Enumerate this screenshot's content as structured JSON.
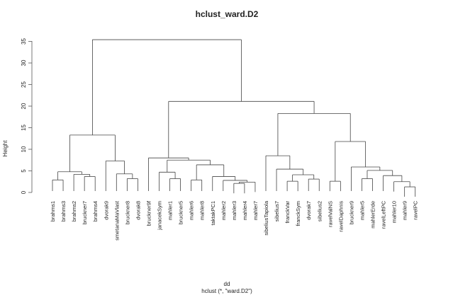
{
  "chart_data": {
    "type": "dendrogram",
    "title": "hclust_ward.D2",
    "xlabel": "dd",
    "subtitle": "hclust (*, \"ward.D2\")",
    "ylabel": "Height",
    "ylim": [
      0,
      35
    ],
    "yticks": [
      0,
      5,
      10,
      15,
      20,
      25,
      30,
      35
    ],
    "leaves": [
      "brahms1",
      "brahms3",
      "brahms2",
      "bruckner7",
      "brahms4",
      "dvorak9",
      "smetanaMaVlast",
      "bruckner8",
      "dvorak8",
      "bruckner9f",
      "janacekSym",
      "mahler1",
      "bruckner5",
      "mahler6",
      "mahler8",
      "taktakPC1",
      "mahler2",
      "mahler3",
      "mahler4",
      "mahler7",
      "sibeliusTapiola",
      "sibelius7",
      "franckVar",
      "franckSym",
      "dvorak7",
      "sibelius2",
      "ravelValNS",
      "ravelDaphnis",
      "bruckner9",
      "mahler5",
      "mahlerErde",
      "ravelLeftPC",
      "mahler10",
      "mahler9",
      "ravelPC"
    ],
    "merges": [
      {
        "a": "L:brahms1",
        "b": "L:brahms3",
        "h": 2.9,
        "id": "m1"
      },
      {
        "a": "L:bruckner7",
        "b": "L:brahms4",
        "h": 3.7,
        "id": "m2"
      },
      {
        "a": "L:brahms2",
        "b": "N:m2",
        "h": 4.2,
        "id": "m3"
      },
      {
        "a": "N:m1",
        "b": "N:m3",
        "h": 4.8,
        "id": "m4"
      },
      {
        "a": "L:bruckner8",
        "b": "L:dvorak8",
        "h": 3.2,
        "id": "m5"
      },
      {
        "a": "L:smetanaMaVlast",
        "b": "N:m5",
        "h": 4.3,
        "id": "m6"
      },
      {
        "a": "L:dvorak9",
        "b": "N:m6",
        "h": 7.3,
        "id": "m7"
      },
      {
        "a": "N:m4",
        "b": "N:m7",
        "h": 13.3,
        "id": "m8"
      },
      {
        "a": "L:mahler1",
        "b": "L:bruckner5",
        "h": 3.2,
        "id": "m9"
      },
      {
        "a": "L:janacekSym",
        "b": "N:m9",
        "h": 4.7,
        "id": "m10"
      },
      {
        "a": "L:mahler3",
        "b": "L:mahler4",
        "h": 2.1,
        "id": "m11"
      },
      {
        "a": "N:m11",
        "b": "L:mahler7",
        "h": 2.4,
        "id": "m12"
      },
      {
        "a": "L:mahler2",
        "b": "N:m12",
        "h": 2.8,
        "id": "m13"
      },
      {
        "a": "L:taktakPC1",
        "b": "N:m13",
        "h": 3.7,
        "id": "m14"
      },
      {
        "a": "L:mahler6",
        "b": "L:mahler8",
        "h": 2.9,
        "id": "m15"
      },
      {
        "a": "N:m15",
        "b": "N:m14",
        "h": 6.4,
        "id": "m16"
      },
      {
        "a": "N:m10",
        "b": "N:m16",
        "h": 7.5,
        "id": "m17"
      },
      {
        "a": "L:bruckner9f",
        "b": "N:m17",
        "h": 8.0,
        "id": "m18"
      },
      {
        "a": "L:franckVar",
        "b": "L:franckSym",
        "h": 2.6,
        "id": "m19"
      },
      {
        "a": "L:dvorak7",
        "b": "L:sibelius2",
        "h": 3.1,
        "id": "m20"
      },
      {
        "a": "N:m19",
        "b": "N:m20",
        "h": 4.1,
        "id": "m21"
      },
      {
        "a": "L:sibelius7",
        "b": "N:m21",
        "h": 5.4,
        "id": "m22"
      },
      {
        "a": "L:sibeliusTapiola",
        "b": "N:m22",
        "h": 8.5,
        "id": "m23"
      },
      {
        "a": "L:ravelValNS",
        "b": "L:ravelDaphnis",
        "h": 2.6,
        "id": "m24"
      },
      {
        "a": "L:mahler5",
        "b": "L:mahlerErde",
        "h": 3.2,
        "id": "m25"
      },
      {
        "a": "L:mahler9",
        "b": "L:ravelPC",
        "h": 1.3,
        "id": "m26"
      },
      {
        "a": "L:mahler10",
        "b": "N:m26",
        "h": 2.5,
        "id": "m27"
      },
      {
        "a": "L:ravelLeftPC",
        "b": "N:m27",
        "h": 3.9,
        "id": "m28"
      },
      {
        "a": "N:m25",
        "b": "N:m28",
        "h": 5.1,
        "id": "m29"
      },
      {
        "a": "L:bruckner9",
        "b": "N:m29",
        "h": 5.9,
        "id": "m30"
      },
      {
        "a": "N:m24",
        "b": "N:m30",
        "h": 11.8,
        "id": "m31"
      },
      {
        "a": "N:m23",
        "b": "N:m31",
        "h": 18.3,
        "id": "m32"
      },
      {
        "a": "N:m18",
        "b": "N:m32",
        "h": 21.1,
        "id": "m33"
      },
      {
        "a": "N:m8",
        "b": "N:m33",
        "h": 35.4,
        "id": "m34"
      }
    ]
  }
}
